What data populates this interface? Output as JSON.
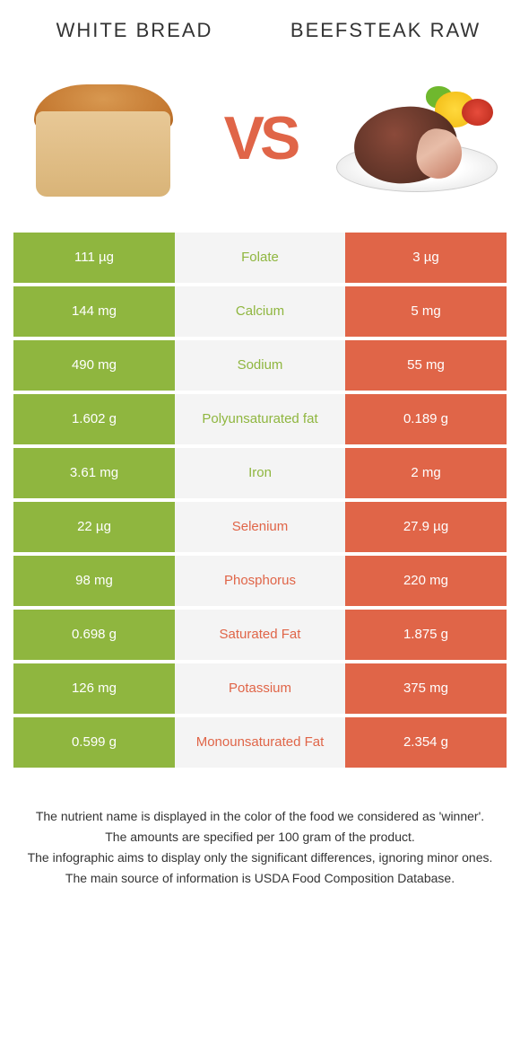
{
  "titles": {
    "left": "White Bread",
    "right": "Beefsteak Raw"
  },
  "vs": "VS",
  "colors": {
    "left": "#8fb63f",
    "mid": "#f4f4f4",
    "right": "#e06548",
    "left_winner_text": "#8fb63f",
    "right_winner_text": "#e06548"
  },
  "rows": [
    {
      "left": "111 µg",
      "name": "Folate",
      "right": "3 µg",
      "winner": "left"
    },
    {
      "left": "144 mg",
      "name": "Calcium",
      "right": "5 mg",
      "winner": "left"
    },
    {
      "left": "490 mg",
      "name": "Sodium",
      "right": "55 mg",
      "winner": "left"
    },
    {
      "left": "1.602 g",
      "name": "Polyunsaturated fat",
      "right": "0.189 g",
      "winner": "left"
    },
    {
      "left": "3.61 mg",
      "name": "Iron",
      "right": "2 mg",
      "winner": "left"
    },
    {
      "left": "22 µg",
      "name": "Selenium",
      "right": "27.9 µg",
      "winner": "right"
    },
    {
      "left": "98 mg",
      "name": "Phosphorus",
      "right": "220 mg",
      "winner": "right"
    },
    {
      "left": "0.698 g",
      "name": "Saturated Fat",
      "right": "1.875 g",
      "winner": "right"
    },
    {
      "left": "126 mg",
      "name": "Potassium",
      "right": "375 mg",
      "winner": "right"
    },
    {
      "left": "0.599 g",
      "name": "Monounsaturated Fat",
      "right": "2.354 g",
      "winner": "right"
    }
  ],
  "footer": [
    "The nutrient name is displayed in the color of the food we considered as 'winner'.",
    "The amounts are specified per 100 gram of the product.",
    "The infographic aims to display only the significant differences, ignoring minor ones.",
    "The main source of information is USDA Food Composition Database."
  ]
}
